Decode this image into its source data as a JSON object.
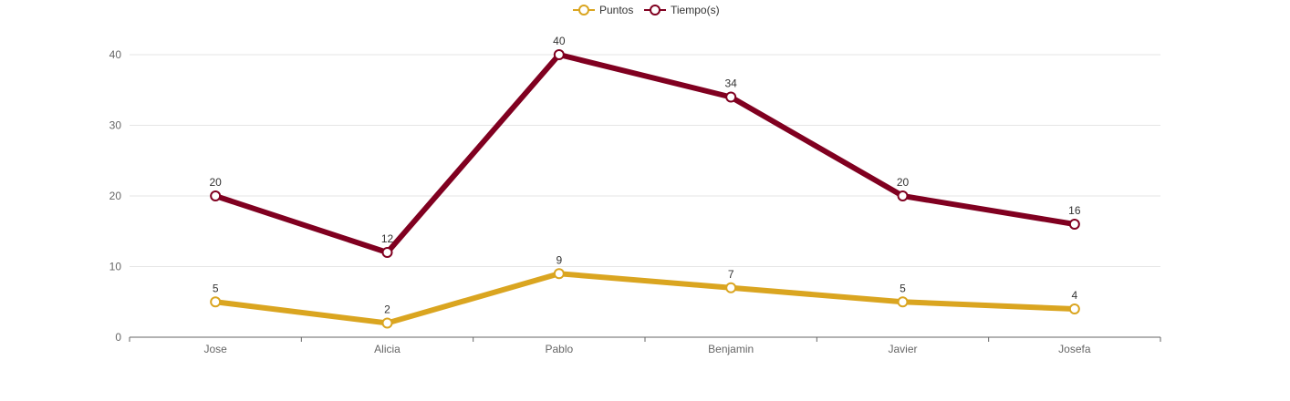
{
  "chart_data": {
    "type": "line",
    "categories": [
      "Jose",
      "Alicia",
      "Pablo",
      "Benjamin",
      "Javier",
      "Josefa"
    ],
    "series": [
      {
        "name": "Puntos",
        "color": "#DAA520",
        "values": [
          5,
          2,
          9,
          7,
          5,
          4
        ]
      },
      {
        "name": "Tiempo(s)",
        "color": "#800020",
        "values": [
          20,
          12,
          40,
          34,
          20,
          16
        ]
      }
    ],
    "ylim": [
      0,
      45
    ],
    "yticks": [
      0,
      10,
      20,
      30,
      40
    ],
    "grid": true,
    "legend": "top-center",
    "data_labels": true
  }
}
